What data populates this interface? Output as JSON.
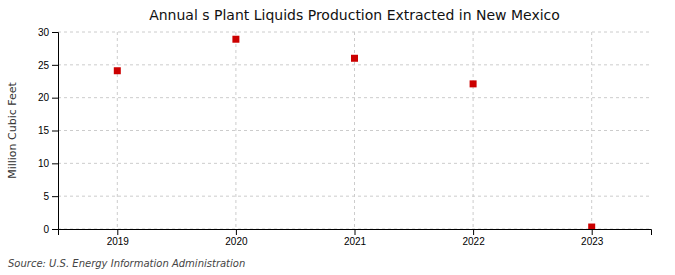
{
  "chart_data": {
    "type": "scatter",
    "title": "Annual s Plant Liquids Production Extracted in New Mexico",
    "y_label": "Million Cubic Feet",
    "annotations": [
      "Source: U.S. Energy Information Administration"
    ],
    "x": [
      2019,
      2020,
      2021,
      2022,
      2023
    ],
    "values": [
      24.1,
      28.9,
      26.0,
      22.1,
      0.3
    ],
    "color": "#cc0000",
    "marker": "square",
    "xlim": [
      2018.5,
      2023.5
    ],
    "xticks": [
      2019,
      2020,
      2021,
      2022,
      2023
    ],
    "ylim": [
      0,
      30
    ],
    "yticks": [
      0,
      5,
      10,
      15,
      20,
      25,
      30
    ],
    "grid": true
  }
}
